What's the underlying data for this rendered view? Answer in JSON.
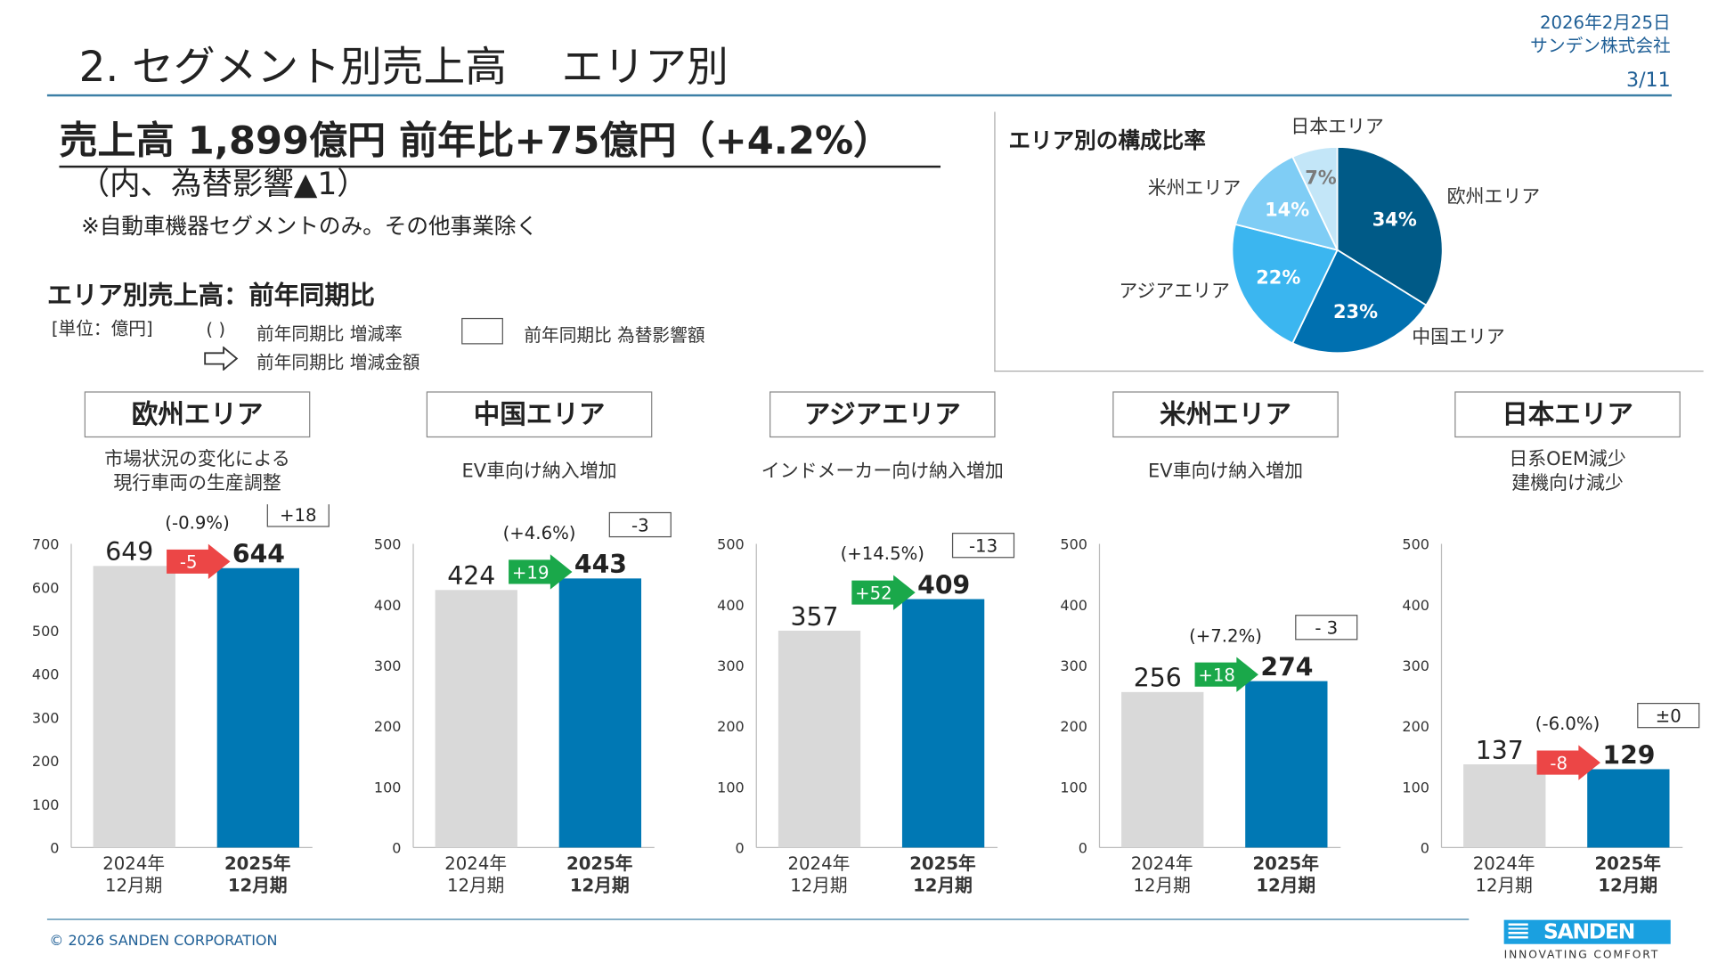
{
  "header": {
    "title": "2.  セグメント別売上高　 エリア別",
    "date": "2026年2月25日",
    "company": "サンデン株式会社",
    "page": "3/11"
  },
  "summary": {
    "headline": "売上高 1,899億円 前年比+75億円（+4.2%）",
    "fx_note": "（内、為替影響▲1）",
    "scope_note": "※自動車機器セグメントのみ。その他事業除く"
  },
  "section": {
    "title": "エリア別売上高：前年同期比",
    "unit": "[単位：億円]",
    "legend_paren": "(  )",
    "legend_rate": "前年同期比  増減率",
    "legend_box": "前年同期比  為替影響額",
    "legend_arrow": "前年同期比  増減金額"
  },
  "pie": {
    "title": "エリア別の構成比率",
    "slices": [
      {
        "name": "欧州エリア",
        "pct": 34,
        "label": "34%",
        "color": "#005a87"
      },
      {
        "name": "中国エリア",
        "pct": 23,
        "label": "23%",
        "color": "#0070b0"
      },
      {
        "name": "アジアエリア",
        "pct": 22,
        "label": "22%",
        "color": "#3bb6f0"
      },
      {
        "name": "米州エリア",
        "pct": 14,
        "label": "14%",
        "color": "#7fcdf5"
      },
      {
        "name": "日本エリア",
        "pct": 7,
        "label": "7%",
        "color": "#c3e6f8"
      }
    ]
  },
  "colors": {
    "prev_bar": "#d9d9d9",
    "curr_bar": "#0078b4",
    "increase": "#1aa84a",
    "decrease": "#ec4646"
  },
  "categories": [
    [
      "2024年",
      "12月期"
    ],
    [
      "2025年",
      "12月期"
    ]
  ],
  "chart_data": [
    {
      "type": "bar",
      "area": "欧州エリア",
      "comment": [
        "市場状況の変化による",
        "現行車両の生産調整"
      ],
      "ylim": [
        0,
        700
      ],
      "ticks": [
        0,
        100,
        200,
        300,
        400,
        500,
        600,
        700
      ],
      "values": [
        649,
        644
      ],
      "value_labels": [
        "649",
        "644"
      ],
      "delta": "-5",
      "pct": "(-0.9%)",
      "fx": "+18"
    },
    {
      "type": "bar",
      "area": "中国エリア",
      "comment": [
        "EV車向け納入増加"
      ],
      "ylim": [
        0,
        500
      ],
      "ticks": [
        0,
        100,
        200,
        300,
        400,
        500
      ],
      "values": [
        424,
        443
      ],
      "value_labels": [
        "424",
        "443"
      ],
      "delta": "+19",
      "pct": "(+4.6%)",
      "fx": "-3"
    },
    {
      "type": "bar",
      "area": "アジアエリア",
      "comment": [
        "インドメーカー向け納入増加"
      ],
      "ylim": [
        0,
        500
      ],
      "ticks": [
        0,
        100,
        200,
        300,
        400,
        500
      ],
      "values": [
        357,
        409
      ],
      "value_labels": [
        "357",
        "409"
      ],
      "delta": "+52",
      "pct": "(+14.5%)",
      "fx": "-13"
    },
    {
      "type": "bar",
      "area": "米州エリア",
      "comment": [
        "EV車向け納入増加"
      ],
      "ylim": [
        0,
        500
      ],
      "ticks": [
        0,
        100,
        200,
        300,
        400,
        500
      ],
      "values": [
        256,
        274
      ],
      "value_labels": [
        "256",
        "274"
      ],
      "delta": "+18",
      "pct": "(+7.2%)",
      "fx": "- 3"
    },
    {
      "type": "bar",
      "area": "日本エリア",
      "comment": [
        "日系OEM減少",
        "建機向け減少"
      ],
      "ylim": [
        0,
        500
      ],
      "ticks": [
        0,
        100,
        200,
        300,
        400,
        500
      ],
      "values": [
        137,
        129
      ],
      "value_labels": [
        "137",
        "129"
      ],
      "delta": "-8",
      "pct": "(-6.0%)",
      "fx": "±0"
    }
  ],
  "footer": {
    "copyright": "© 2026 SANDEN CORPORATION",
    "logo": "SANDEN",
    "tagline": "INNOVATING COMFORT"
  }
}
